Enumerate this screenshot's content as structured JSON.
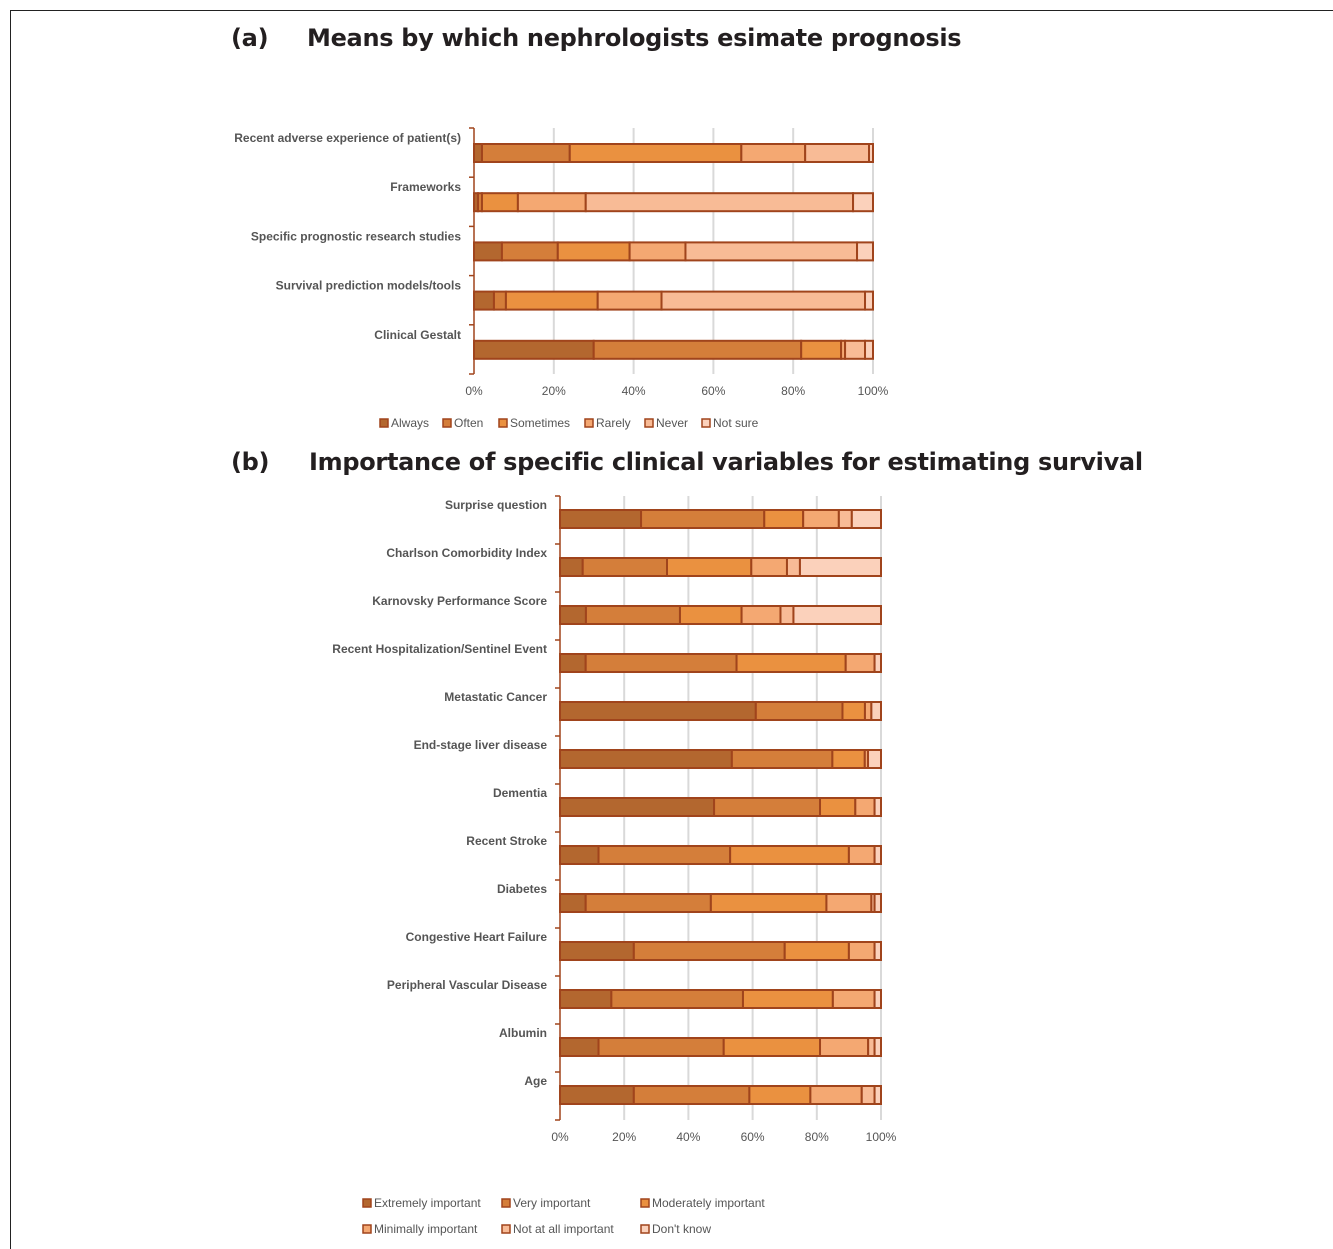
{
  "panel_a": {
    "label": "(a)",
    "title": "Means by which nephrologists esimate prognosis"
  },
  "panel_b": {
    "label": "(b)",
    "title": "Importance of specific clinical variables for estimating survival"
  },
  "colors": {
    "stroke": "#a0441c",
    "grid": "#d9d9d9",
    "text": "#555555",
    "fills": [
      "#b3672f",
      "#d47e3a",
      "#ea9140",
      "#f4a872",
      "#f8bb96",
      "#fbd1bb"
    ]
  },
  "chart_data": [
    {
      "type": "bar",
      "orientation": "horizontal",
      "stacked": "percent",
      "categories": [
        "Recent adverse experience of patient(s)",
        "Frameworks",
        "Specific prognostic research studies",
        "Survival prediction models/tools",
        "Clinical Gestalt"
      ],
      "series": [
        {
          "name": "Always",
          "values": [
            2,
            1,
            7,
            5,
            30
          ]
        },
        {
          "name": "Often",
          "values": [
            22,
            1,
            14,
            3,
            52
          ]
        },
        {
          "name": "Sometimes",
          "values": [
            43,
            9,
            18,
            23,
            10
          ]
        },
        {
          "name": "Rarely",
          "values": [
            16,
            17,
            14,
            16,
            1
          ]
        },
        {
          "name": "Never",
          "values": [
            16,
            67,
            43,
            51,
            5
          ]
        },
        {
          "name": "Not sure",
          "values": [
            1,
            5,
            4,
            2,
            2
          ]
        }
      ],
      "xticks": [
        "0%",
        "20%",
        "40%",
        "60%",
        "80%",
        "100%"
      ],
      "xlim": [
        0,
        100
      ],
      "legend": "bottom",
      "grid": true
    },
    {
      "type": "bar",
      "orientation": "horizontal",
      "stacked": "percent",
      "categories": [
        "Surprise question",
        "Charlson Comorbidity Index",
        "Karnovsky Performance Score",
        "Recent Hospitalization/Sentinel Event",
        "Metastatic Cancer",
        "End-stage liver disease",
        "Dementia",
        "Recent Stroke",
        "Diabetes",
        "Congestive Heart Failure",
        "Peripheral Vascular Disease",
        "Albumin",
        "Age"
      ],
      "series": [
        {
          "name": "Extremely important",
          "values": [
            25,
            7,
            8,
            8,
            61,
            53,
            48,
            12,
            8,
            23,
            16,
            12,
            23
          ]
        },
        {
          "name": "Very important",
          "values": [
            38,
            26,
            29,
            47,
            27,
            31,
            33,
            41,
            39,
            47,
            41,
            39,
            36
          ]
        },
        {
          "name": "Moderately important",
          "values": [
            12,
            26,
            19,
            34,
            7,
            10,
            11,
            37,
            36,
            20,
            28,
            30,
            19
          ]
        },
        {
          "name": "Minimally important",
          "values": [
            11,
            11,
            12,
            9,
            2,
            1,
            6,
            8,
            14,
            8,
            13,
            15,
            16
          ]
        },
        {
          "name": "Not at all important",
          "values": [
            4,
            4,
            4,
            0,
            0,
            0,
            0,
            0,
            1,
            0,
            0,
            2,
            4
          ]
        },
        {
          "name": "Don't know",
          "values": [
            9,
            25,
            27,
            2,
            3,
            4,
            2,
            2,
            2,
            2,
            2,
            2,
            2
          ]
        }
      ],
      "xticks": [
        "0%",
        "20%",
        "40%",
        "60%",
        "80%",
        "100%"
      ],
      "xlim": [
        0,
        100
      ],
      "legend": "bottom",
      "grid": true
    }
  ]
}
